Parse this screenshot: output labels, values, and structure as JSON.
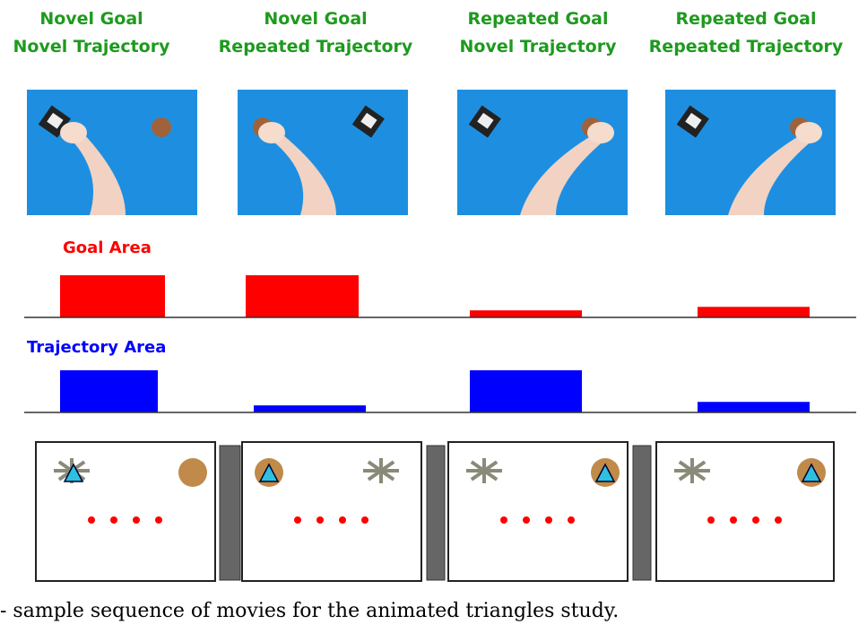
{
  "headers": [
    [
      "Novel Goal",
      "Novel Trajectory"
    ],
    [
      "Novel Goal",
      "Repeated Trajectory"
    ],
    [
      "Repeated Goal",
      "Novel Trajectory"
    ],
    [
      "Repeated Goal",
      "Repeated Trajectory"
    ]
  ],
  "chart_data": [
    {
      "type": "bar",
      "title": "Goal Area",
      "categories": [
        null,
        null,
        null,
        null
      ],
      "values": [
        48,
        48,
        8,
        12
      ],
      "color": "#ff0000",
      "ylim": [
        0,
        50
      ]
    },
    {
      "type": "bar",
      "title": "Trajectory Area",
      "categories": [
        null,
        null,
        null,
        null
      ],
      "values": [
        48,
        8,
        48,
        12
      ],
      "color": "#0000ff",
      "ylim": [
        0,
        50
      ]
    }
  ],
  "caption": "- sample sequence of movies for the animated triangles study."
}
